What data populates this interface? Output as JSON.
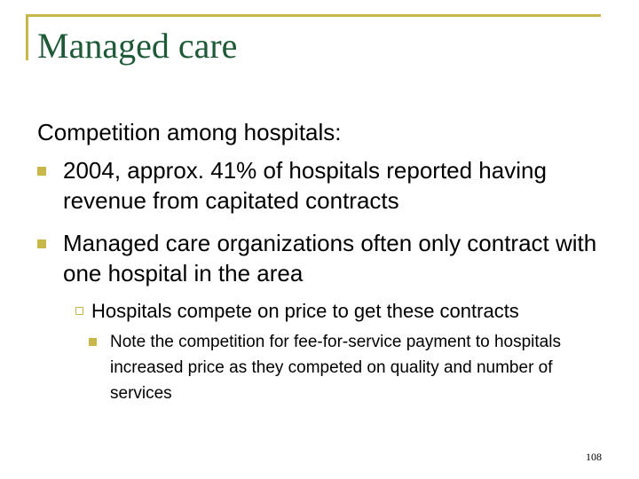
{
  "slide": {
    "title": "Managed care",
    "intro": "Competition among hospitals:",
    "bullets": [
      "2004, approx. 41% of hospitals reported having revenue from capitated contracts",
      "Managed care organizations often only contract with one hospital in the area"
    ],
    "sub_bullet": "Hospitals compete on price to get these contracts",
    "sub_sub_bullet": "Note the competition for fee-for-service payment to hospitals increased price as they competed on quality and number of services",
    "page_number": "108"
  },
  "colors": {
    "accent": "#c8b84a",
    "title": "#1e5a37"
  },
  "icons": {
    "bullet_level_1": "filled-square",
    "bullet_level_2": "hollow-square",
    "bullet_level_3": "filled-square"
  }
}
